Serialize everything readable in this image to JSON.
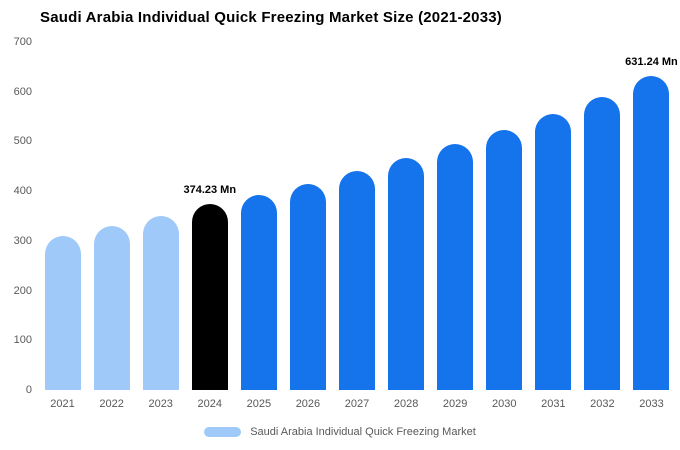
{
  "title": "Saudi Arabia Individual Quick Freezing Market Size (2021-2033)",
  "legend": {
    "label": "Saudi Arabia Individual Quick Freezing Market",
    "swatch_color": "#9FC9F8"
  },
  "colors": {
    "light_blue": "#9FC9F8",
    "primary_blue": "#1573EB",
    "highlight_black": "#000000",
    "axis_text": "#595959",
    "background": "#ffffff"
  },
  "chart_data": {
    "type": "bar",
    "title": "Saudi Arabia Individual Quick Freezing Market Size (2021-2033)",
    "categories": [
      "2021",
      "2022",
      "2023",
      "2024",
      "2025",
      "2026",
      "2027",
      "2028",
      "2029",
      "2030",
      "2031",
      "2032",
      "2033"
    ],
    "values": [
      310,
      330,
      351,
      374.23,
      392,
      415,
      440,
      466,
      494,
      524,
      556,
      590,
      631.24
    ],
    "bar_colors": [
      "#9FC9F8",
      "#9FC9F8",
      "#9FC9F8",
      "#000000",
      "#1573EB",
      "#1573EB",
      "#1573EB",
      "#1573EB",
      "#1573EB",
      "#1573EB",
      "#1573EB",
      "#1573EB",
      "#1573EB"
    ],
    "annotations": [
      {
        "index": 3,
        "text": "374.23 Mn"
      },
      {
        "index": 12,
        "text": "631.24 Mn"
      }
    ],
    "xlabel": "",
    "ylabel": "",
    "ylim": [
      0,
      700
    ],
    "yticks": [
      0,
      100,
      200,
      300,
      400,
      500,
      600,
      700
    ],
    "grid": false,
    "legend_entries": [
      "Saudi Arabia Individual Quick Freezing Market"
    ],
    "legend_position": "bottom-center"
  }
}
